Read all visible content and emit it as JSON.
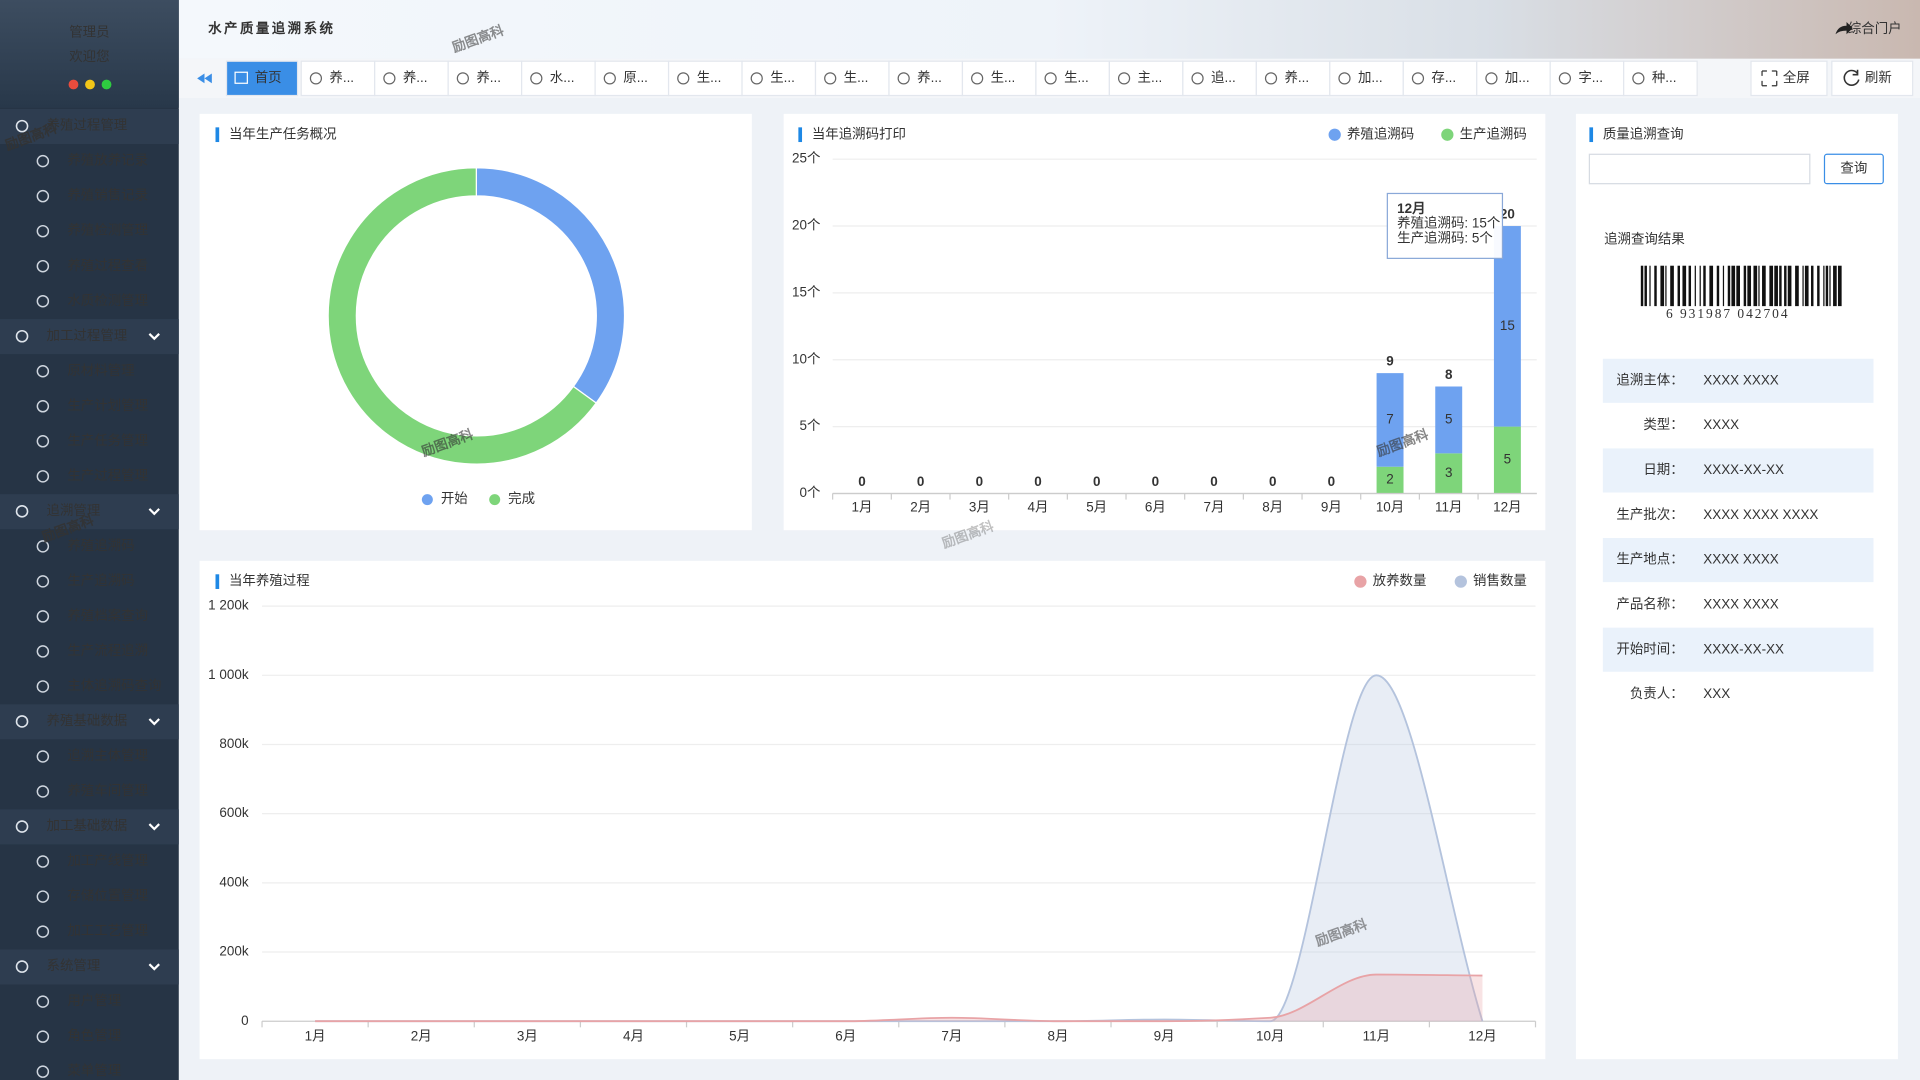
{
  "header": {
    "title": "水产质量追溯系统",
    "portal": "综合门户"
  },
  "watermark": "励图高科",
  "sidebar": {
    "user": "管理员",
    "welcome": "欢迎您",
    "menu": [
      {
        "label": "养殖过程管理",
        "children": [
          "养殖放养记录",
          "养殖销售记录",
          "养殖检测管理",
          "养殖过程查看",
          "水质检测管理"
        ]
      },
      {
        "label": "加工过程管理",
        "children": [
          "原材料管理",
          "生产计划管理",
          "生产任务管理",
          "生产过程管理"
        ]
      },
      {
        "label": "追溯管理",
        "children": [
          "养殖追溯码",
          "生产追溯码",
          "养殖档案查询",
          "生产流程追溯",
          "主体追溯码查询"
        ]
      },
      {
        "label": "养殖基础数据",
        "children": [
          "追溯主体管理",
          "养殖车间管理"
        ]
      },
      {
        "label": "加工基础数据",
        "children": [
          "加工产线管理",
          "存储位置管理",
          "加工工艺管理"
        ]
      },
      {
        "label": "系统管理",
        "children": [
          "用户管理",
          "角色管理",
          "菜单管理"
        ]
      }
    ]
  },
  "tabs": {
    "items": [
      "首页",
      "养...",
      "养...",
      "养...",
      "水...",
      "原...",
      "生...",
      "生...",
      "生...",
      "养...",
      "生...",
      "生...",
      "主...",
      "追...",
      "养...",
      "加...",
      "存...",
      "加...",
      "字...",
      "种..."
    ],
    "fullscreen": "全屏",
    "refresh": "刷新"
  },
  "chart_data": [
    {
      "type": "pie",
      "title": "当年生产任务概况",
      "categories": [
        "开始",
        "完成"
      ],
      "values": [
        35,
        65
      ],
      "colors": [
        "#6ea2f0",
        "#7ed57a"
      ]
    },
    {
      "type": "bar",
      "stacked": true,
      "title": "当年追溯码打印",
      "categories": [
        "1月",
        "2月",
        "3月",
        "4月",
        "5月",
        "6月",
        "7月",
        "8月",
        "9月",
        "10月",
        "11月",
        "12月"
      ],
      "series": [
        {
          "name": "养殖追溯码",
          "color": "#6ea2f0",
          "values": [
            0,
            0,
            0,
            0,
            0,
            0,
            0,
            0,
            0,
            7,
            5,
            15
          ]
        },
        {
          "name": "生产追溯码",
          "color": "#7ed57a",
          "values": [
            0,
            0,
            0,
            0,
            0,
            0,
            0,
            0,
            0,
            2,
            3,
            5
          ]
        }
      ],
      "totals": [
        0,
        0,
        0,
        0,
        0,
        0,
        0,
        0,
        0,
        9,
        8,
        20
      ],
      "ylim": [
        0,
        25
      ],
      "yticks": [
        {
          "value": 0,
          "label": "0个"
        },
        {
          "value": 5,
          "label": "5个"
        },
        {
          "value": 10,
          "label": "10个"
        },
        {
          "value": 15,
          "label": "15个"
        },
        {
          "value": 20,
          "label": "20个"
        },
        {
          "value": 25,
          "label": "25个"
        }
      ],
      "grid": true,
      "tooltip": {
        "title": "12月",
        "lines": [
          "养殖追溯码: 15个",
          "生产追溯码: 5个"
        ]
      }
    },
    {
      "type": "area",
      "title": "当年养殖过程",
      "categories": [
        "1月",
        "2月",
        "3月",
        "4月",
        "5月",
        "6月",
        "7月",
        "8月",
        "9月",
        "10月",
        "11月",
        "12月"
      ],
      "series": [
        {
          "name": "放养数量",
          "color": "#e8a3a6",
          "values": [
            0,
            0,
            0,
            0,
            0,
            0,
            10000,
            0,
            0,
            10000,
            135000,
            132000
          ]
        },
        {
          "name": "销售数量",
          "color": "#b4c3dd",
          "values": [
            0,
            0,
            0,
            0,
            0,
            0,
            0,
            0,
            5000,
            0,
            1000000,
            0
          ]
        }
      ],
      "ylim": [
        0,
        1200000
      ],
      "yticks": [
        0,
        {
          "value": 200000,
          "label": "200k"
        },
        {
          "value": 400000,
          "label": "400k"
        },
        {
          "value": 600000,
          "label": "600k"
        },
        {
          "value": 800000,
          "label": "800k"
        },
        {
          "value": 1000000,
          "label": "1 000k"
        },
        {
          "value": 1200000,
          "label": "1 200k"
        }
      ],
      "grid": true
    }
  ],
  "query": {
    "title": "质量追溯查询",
    "button": "查询",
    "result_title": "追溯查询结果",
    "barcode": "6 931987 042704",
    "fields": [
      {
        "label": "追溯主体：",
        "value": "XXXX XXXX"
      },
      {
        "label": "类型：",
        "value": "XXXX"
      },
      {
        "label": "日期：",
        "value": "XXXX-XX-XX"
      },
      {
        "label": "生产批次：",
        "value": "XXXX XXXX XXXX"
      },
      {
        "label": "生产地点：",
        "value": "XXXX XXXX"
      },
      {
        "label": "产品名称：",
        "value": "XXXX XXXX"
      },
      {
        "label": "开始时间：",
        "value": "XXXX-XX-XX"
      },
      {
        "label": "负责人：",
        "value": "XXX"
      }
    ]
  }
}
